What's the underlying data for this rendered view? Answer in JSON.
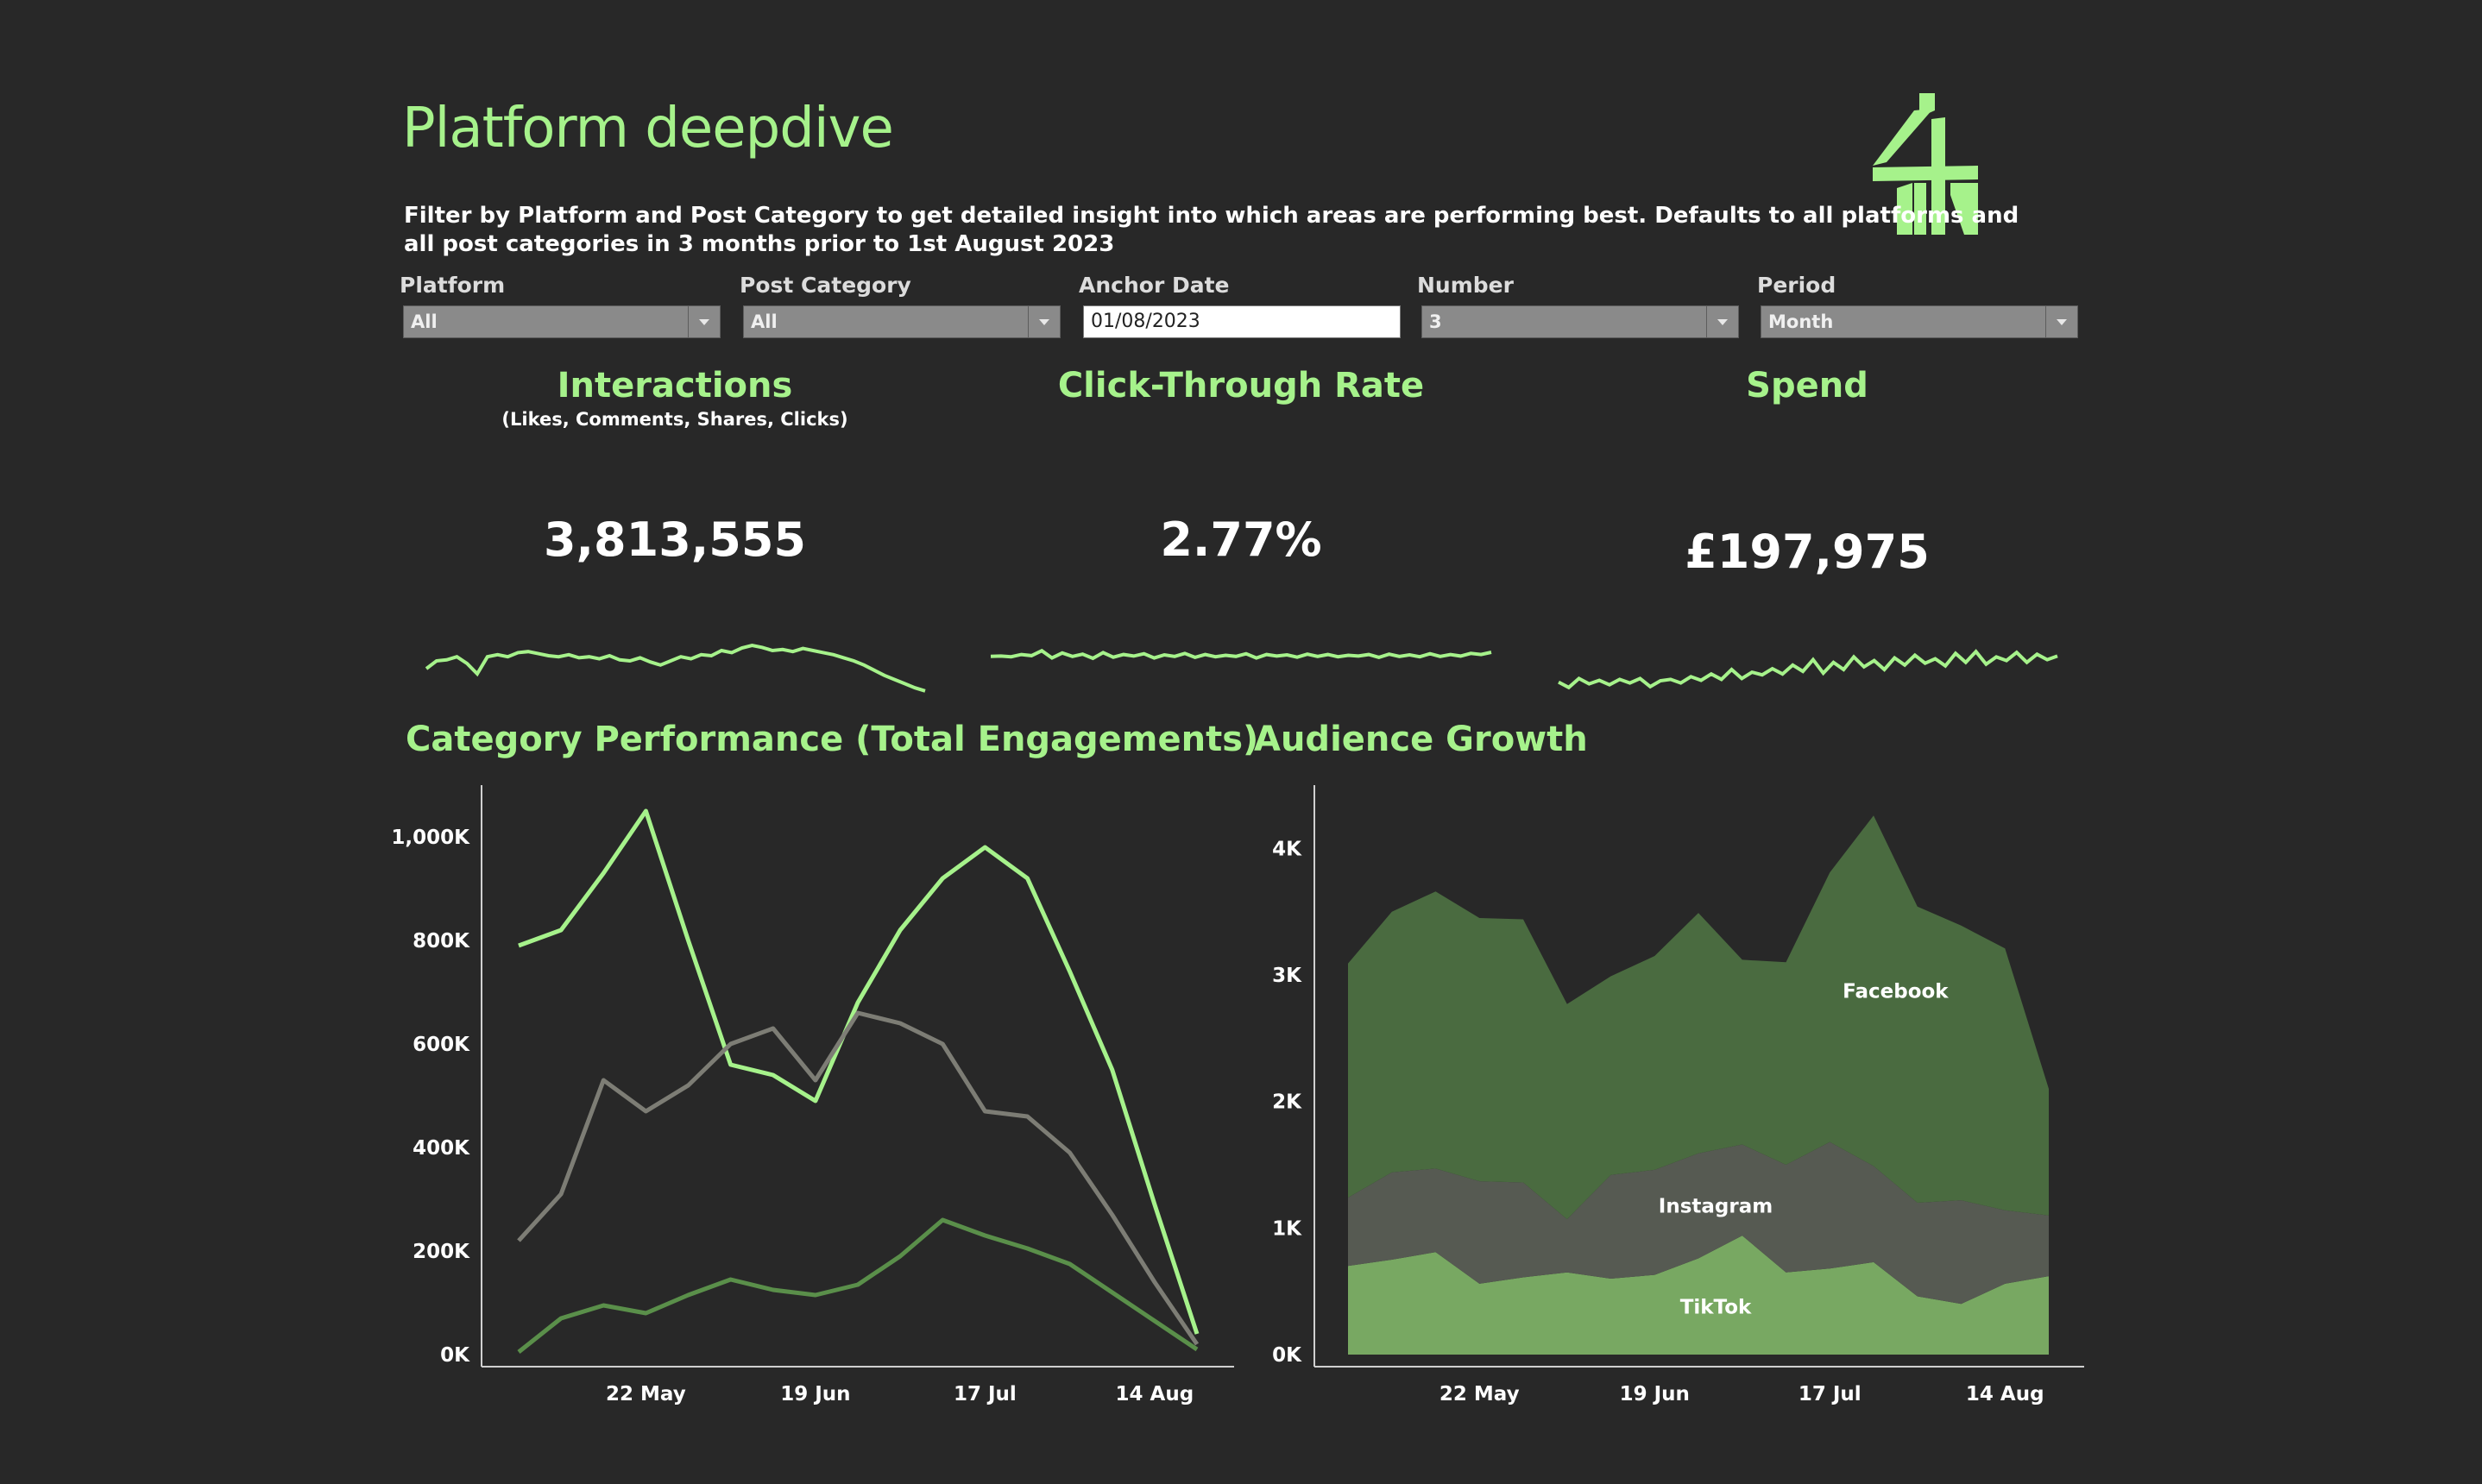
{
  "header": {
    "title": "Platform deepdive",
    "description_line1": "Filter by Platform and Post Category to get detailed insight into which areas are performing best. Defaults to all platforms and",
    "description_line2": "all post categories in 3 months prior to 1st August 2023"
  },
  "filters": {
    "platform": {
      "label": "Platform",
      "value": "All"
    },
    "post_category": {
      "label": "Post Category",
      "value": "All"
    },
    "anchor_date": {
      "label": "Anchor Date",
      "value": "01/08/2023"
    },
    "number": {
      "label": "Number",
      "value": "3"
    },
    "period": {
      "label": "Period",
      "value": "Month"
    }
  },
  "kpis": {
    "interactions": {
      "title": "Interactions",
      "subtitle": "(Likes, Comments, Shares, Clicks)",
      "value": "3,813,555"
    },
    "ctr": {
      "title": "Click-Through Rate",
      "value": "2.77%"
    },
    "spend": {
      "title": "Spend",
      "value": "£197,975"
    }
  },
  "colors": {
    "background": "#282828",
    "accent": "#a6f28b",
    "dark_green": "#5a8f4a",
    "grey": "#7d7d75",
    "facebook": "#4a6b40",
    "instagram": "#565a52",
    "tiktok": "#78a862"
  },
  "sparklines": {
    "interactions": [
      0.55,
      0.7,
      0.72,
      0.78,
      0.65,
      0.45,
      0.78,
      0.82,
      0.78,
      0.86,
      0.88,
      0.84,
      0.8,
      0.78,
      0.82,
      0.76,
      0.78,
      0.74,
      0.8,
      0.72,
      0.7,
      0.76,
      0.68,
      0.62,
      0.7,
      0.78,
      0.74,
      0.82,
      0.8,
      0.9,
      0.86,
      0.95,
      1.0,
      0.96,
      0.9,
      0.92,
      0.88,
      0.94,
      0.9,
      0.86,
      0.82,
      0.76,
      0.7,
      0.62,
      0.52,
      0.42,
      0.34,
      0.26,
      0.18,
      0.12
    ],
    "ctr": [
      0.6,
      0.62,
      0.58,
      0.7,
      0.64,
      0.9,
      0.52,
      0.78,
      0.6,
      0.72,
      0.5,
      0.8,
      0.56,
      0.7,
      0.62,
      0.74,
      0.52,
      0.68,
      0.6,
      0.76,
      0.55,
      0.7,
      0.58,
      0.66,
      0.6,
      0.74,
      0.52,
      0.7,
      0.62,
      0.68,
      0.56,
      0.72,
      0.6,
      0.7,
      0.58,
      0.66,
      0.62,
      0.7,
      0.55,
      0.72,
      0.6,
      0.68,
      0.58,
      0.74,
      0.6,
      0.7,
      0.62,
      0.76,
      0.7,
      0.82
    ],
    "spend": [
      0.22,
      0.1,
      0.3,
      0.18,
      0.26,
      0.16,
      0.28,
      0.2,
      0.3,
      0.12,
      0.25,
      0.28,
      0.2,
      0.34,
      0.26,
      0.4,
      0.28,
      0.5,
      0.3,
      0.44,
      0.38,
      0.52,
      0.4,
      0.6,
      0.46,
      0.72,
      0.42,
      0.66,
      0.5,
      0.78,
      0.56,
      0.7,
      0.5,
      0.76,
      0.6,
      0.82,
      0.64,
      0.74,
      0.58,
      0.86,
      0.66,
      0.9,
      0.62,
      0.78,
      0.7,
      0.88,
      0.66,
      0.84,
      0.72,
      0.8
    ]
  },
  "charts": {
    "category_title": "Category Performance (Total Engagements)",
    "audience_title": "Audience Growth"
  },
  "chart_data": [
    {
      "type": "line",
      "title": "Category Performance (Total Engagements)",
      "x_tick_labels": [
        "22 May",
        "19 Jun",
        "17 Jul",
        "14 Aug"
      ],
      "y_tick_labels": [
        "0K",
        "200K",
        "400K",
        "600K",
        "800K",
        "1,000K"
      ],
      "ylim": [
        0,
        1100000
      ],
      "x": [
        "01 May",
        "08 May",
        "15 May",
        "22 May",
        "29 May",
        "05 Jun",
        "12 Jun",
        "19 Jun",
        "26 Jun",
        "03 Jul",
        "10 Jul",
        "17 Jul",
        "24 Jul",
        "31 Jul",
        "07 Aug",
        "14 Aug",
        "21 Aug"
      ],
      "series": [
        {
          "color": "#a6f28b",
          "values": [
            790000,
            820000,
            930000,
            1050000,
            800000,
            560000,
            540000,
            490000,
            680000,
            820000,
            920000,
            980000,
            920000,
            740000,
            550000,
            290000,
            40000
          ]
        },
        {
          "color": "#7d7d75",
          "values": [
            220000,
            310000,
            530000,
            470000,
            520000,
            600000,
            630000,
            530000,
            660000,
            640000,
            600000,
            470000,
            460000,
            390000,
            270000,
            140000,
            20000
          ]
        },
        {
          "color": "#5a8f4a",
          "values": [
            5000,
            70000,
            95000,
            80000,
            115000,
            145000,
            125000,
            115000,
            135000,
            190000,
            260000,
            230000,
            205000,
            175000,
            120000,
            65000,
            10000
          ]
        }
      ],
      "grid": false
    },
    {
      "type": "area",
      "title": "Audience Growth",
      "stacked": true,
      "x_tick_labels": [
        "22 May",
        "19 Jun",
        "17 Jul",
        "14 Aug"
      ],
      "y_tick_labels": [
        "0K",
        "1K",
        "2K",
        "3K",
        "4K"
      ],
      "ylim": [
        0,
        4500
      ],
      "x": [
        "01 May",
        "08 May",
        "15 May",
        "22 May",
        "29 May",
        "05 Jun",
        "12 Jun",
        "19 Jun",
        "26 Jun",
        "03 Jul",
        "10 Jul",
        "17 Jul",
        "24 Jul",
        "31 Jul",
        "07 Aug",
        "14 Aug",
        "21 Aug"
      ],
      "series": [
        {
          "name": "TikTok",
          "color": "#78a862",
          "values": [
            700,
            750,
            810,
            560,
            610,
            650,
            600,
            630,
            760,
            940,
            650,
            680,
            730,
            460,
            400,
            560,
            620
          ]
        },
        {
          "name": "Instagram",
          "color": "#565a52",
          "values": [
            540,
            690,
            660,
            810,
            750,
            420,
            820,
            830,
            830,
            720,
            850,
            1000,
            760,
            740,
            820,
            580,
            480
          ]
        },
        {
          "name": "Facebook",
          "color": "#4a6b40",
          "values": [
            1850,
            2060,
            2190,
            2080,
            2080,
            1700,
            1570,
            1690,
            1900,
            1460,
            1600,
            2130,
            2770,
            2340,
            2170,
            2070,
            1000
          ]
        }
      ],
      "grid": false
    }
  ]
}
